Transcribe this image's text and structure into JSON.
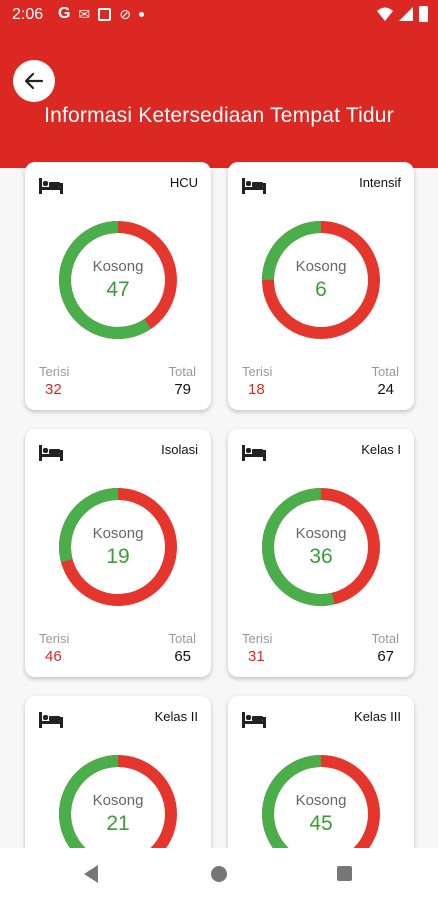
{
  "status_bar": {
    "time": "2:06",
    "icons": [
      "google-icon",
      "gmail-icon",
      "sim-card-icon",
      "blocked-icon",
      "dot-icon",
      "wifi-icon",
      "signal-icon",
      "battery-icon"
    ]
  },
  "header": {
    "title": "Informasi Ketersediaan Tempat Tidur",
    "back_icon": "arrow-left-icon"
  },
  "labels": {
    "empty": "Kosong",
    "occupied": "Terisi",
    "total": "Total"
  },
  "colors": {
    "header": "#dc2823",
    "empty_green": "#4aae4a",
    "occupied_red": "#e4362c",
    "value_green": "#3a9d3a",
    "value_red": "#dc2823"
  },
  "cards": [
    {
      "name": "HCU",
      "empty": "47",
      "occupied": "32",
      "total": "79"
    },
    {
      "name": "Intensif",
      "empty": "6",
      "occupied": "18",
      "total": "24"
    },
    {
      "name": "Isolasi",
      "empty": "19",
      "occupied": "46",
      "total": "65"
    },
    {
      "name": "Kelas I",
      "empty": "36",
      "occupied": "31",
      "total": "67"
    },
    {
      "name": "Kelas II",
      "empty": "21"
    },
    {
      "name": "Kelas III",
      "empty": "45"
    }
  ],
  "nav_bar": {
    "icons": [
      "nav-back-icon",
      "nav-home-icon",
      "nav-recent-icon"
    ]
  }
}
